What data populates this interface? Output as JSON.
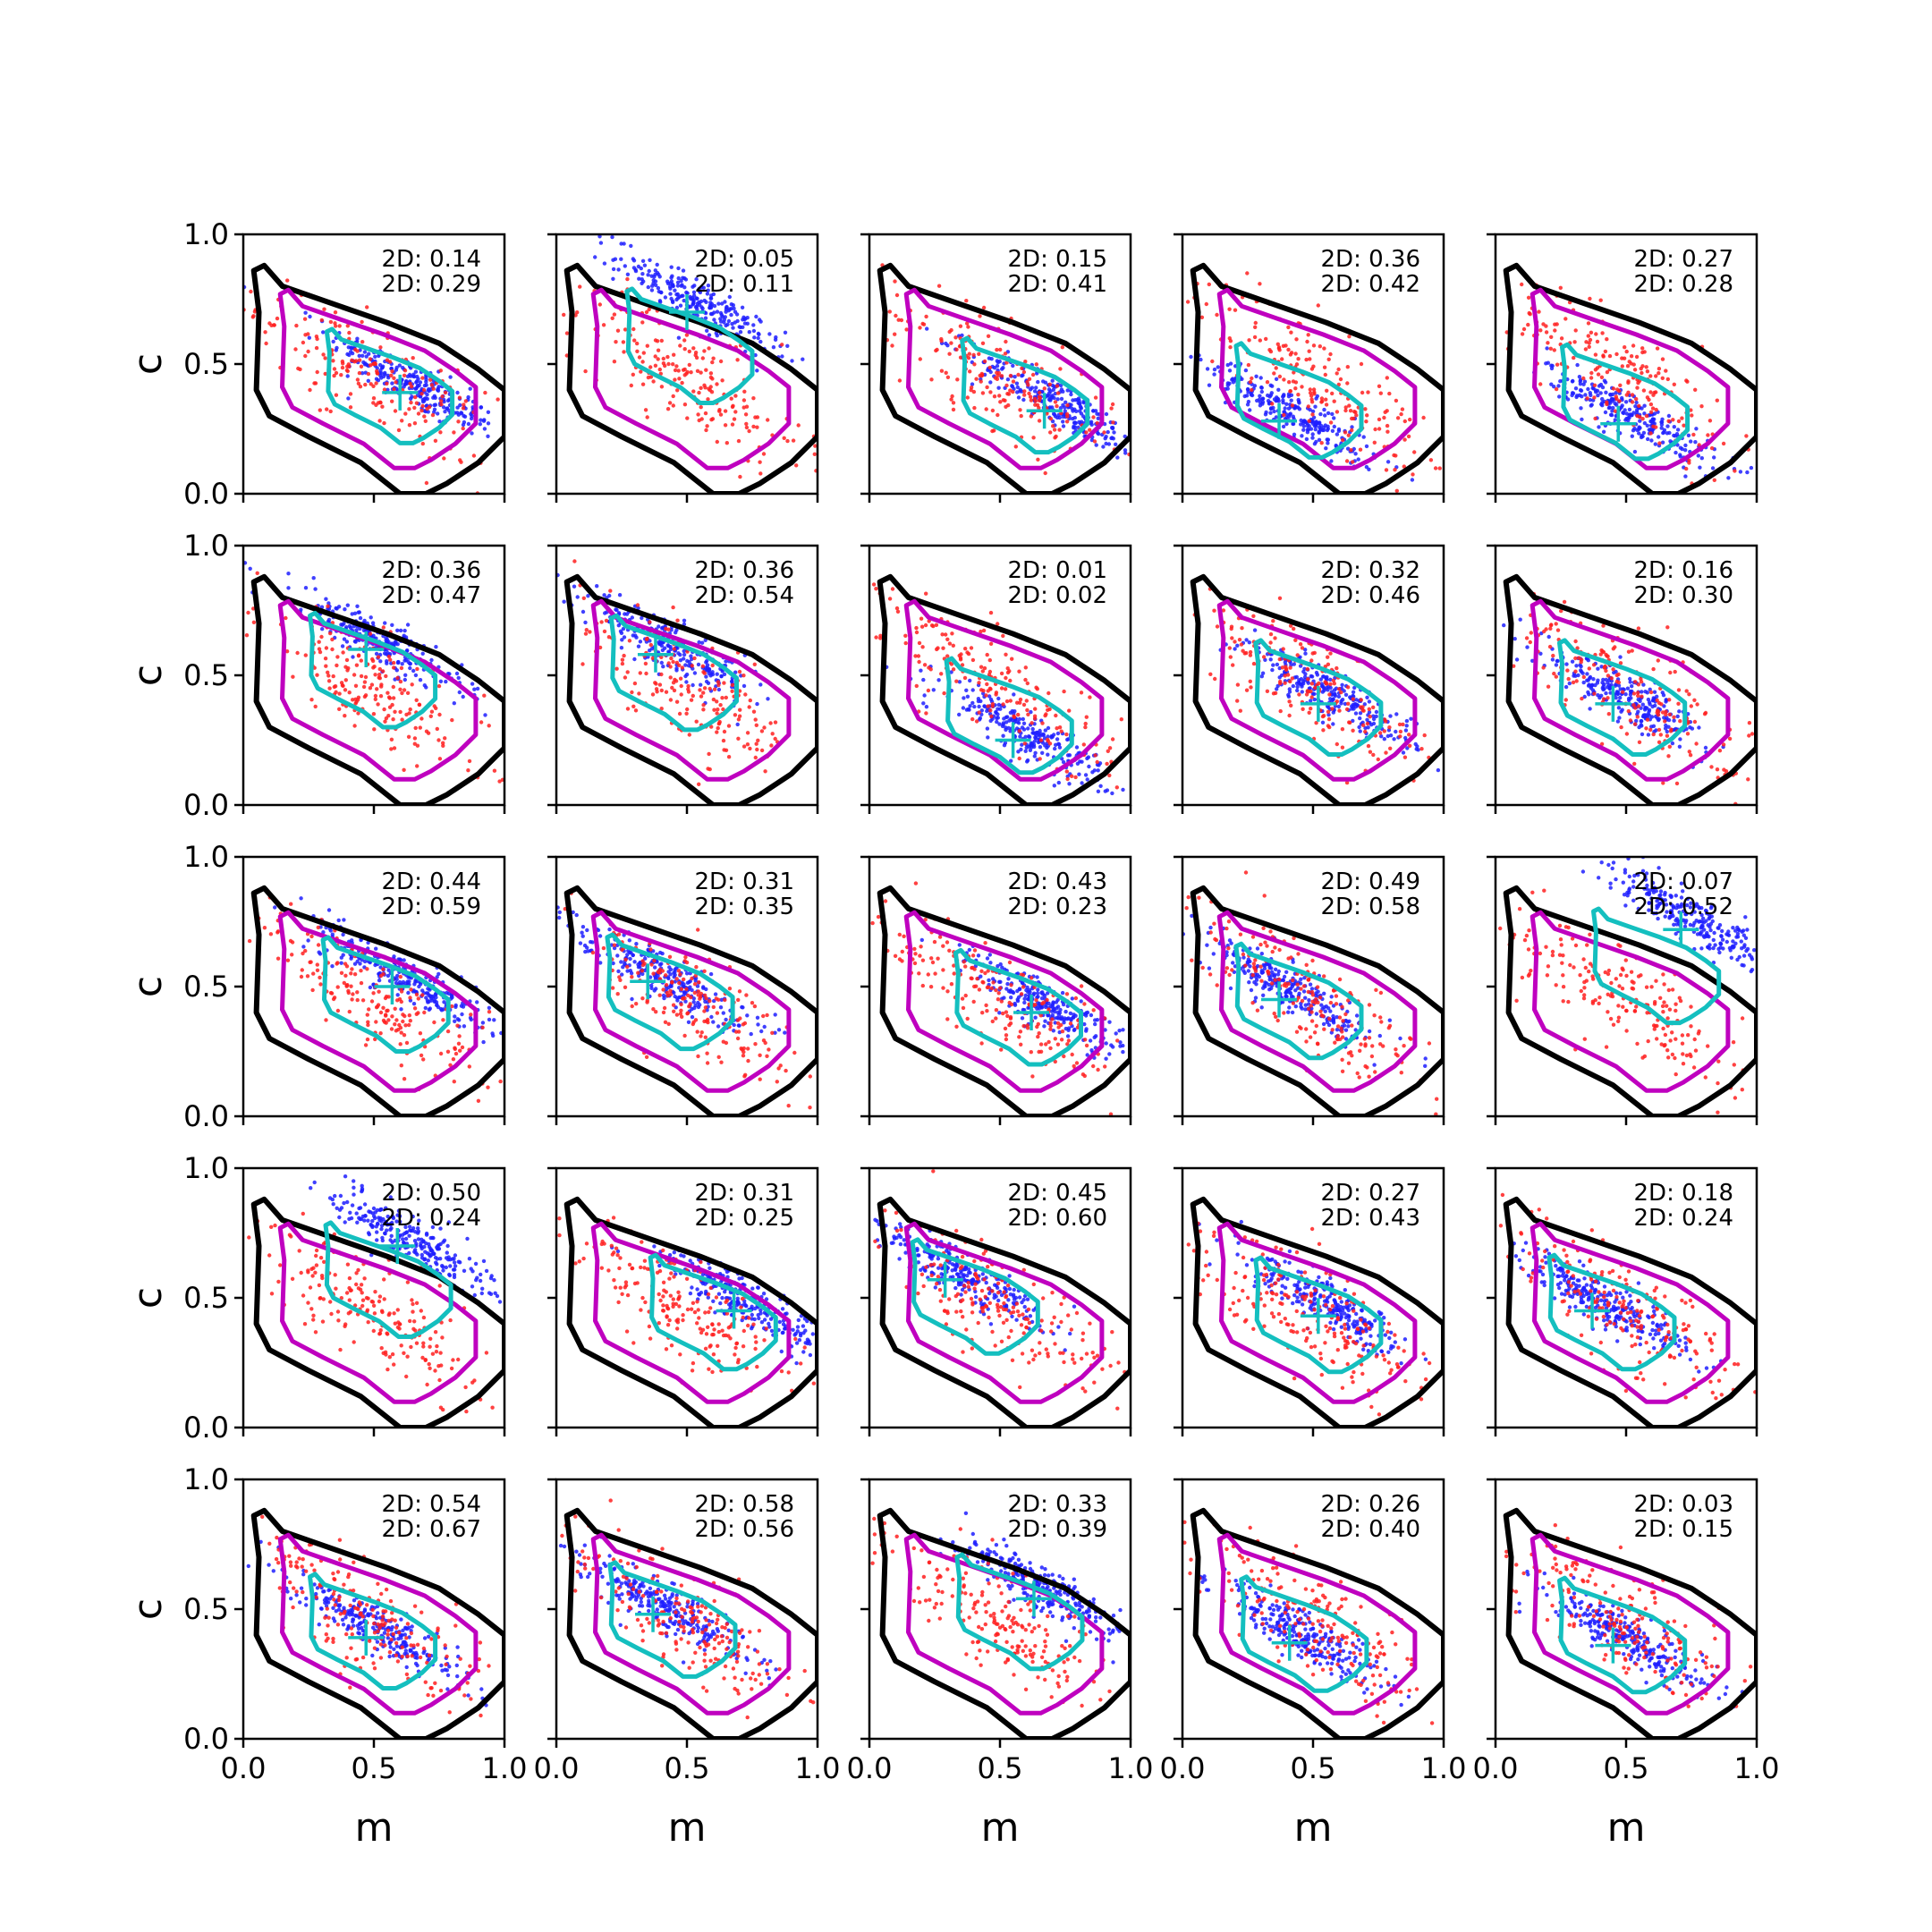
{
  "figure": {
    "xlabel": "m",
    "ylabel": "c",
    "xticks": [
      "0.0",
      "0.5",
      "1.0"
    ],
    "yticks": [
      "0.0",
      "0.5",
      "1.0"
    ],
    "colors": {
      "blue_points": "#1f1fff",
      "red_points": "#ff2020",
      "black_contour": "#000000",
      "magenta_contour": "#bf00bf",
      "cyan_contour": "#14bfbf",
      "cyan_marker": "#14bfbf"
    },
    "grid": false
  },
  "chart_data": {
    "type": "scatter",
    "rows": 5,
    "cols": 5,
    "xlim": [
      0,
      1
    ],
    "ylim": [
      0,
      1
    ],
    "panels": [
      {
        "annot": [
          "2D: 0.14",
          "2D: 0.29"
        ],
        "marker": [
          0.6,
          0.39
        ]
      },
      {
        "annot": [
          "2D: 0.05",
          "2D: 0.11"
        ],
        "marker": [
          0.5,
          0.7
        ]
      },
      {
        "annot": [
          "2D: 0.15",
          "2D: 0.41"
        ],
        "marker": [
          0.67,
          0.32
        ]
      },
      {
        "annot": [
          "2D: 0.36",
          "2D: 0.42"
        ],
        "marker": [
          0.37,
          0.28
        ]
      },
      {
        "annot": [
          "2D: 0.27",
          "2D: 0.28"
        ],
        "marker": [
          0.47,
          0.27
        ]
      },
      {
        "annot": [
          "2D: 0.36",
          "2D: 0.47"
        ],
        "marker": [
          0.47,
          0.6
        ]
      },
      {
        "annot": [
          "2D: 0.36",
          "2D: 0.54"
        ],
        "marker": [
          0.38,
          0.58
        ]
      },
      {
        "annot": [
          "2D: 0.01",
          "2D: 0.02"
        ],
        "marker": [
          0.55,
          0.25
        ]
      },
      {
        "annot": [
          "2D: 0.32",
          "2D: 0.46"
        ],
        "marker": [
          0.52,
          0.39
        ]
      },
      {
        "annot": [
          "2D: 0.16",
          "2D: 0.30"
        ],
        "marker": [
          0.45,
          0.39
        ]
      },
      {
        "annot": [
          "2D: 0.44",
          "2D: 0.59"
        ],
        "marker": [
          0.57,
          0.5
        ]
      },
      {
        "annot": [
          "2D: 0.31",
          "2D: 0.35"
        ],
        "marker": [
          0.35,
          0.52
        ]
      },
      {
        "annot": [
          "2D: 0.43",
          "2D: 0.23"
        ],
        "marker": [
          0.62,
          0.4
        ]
      },
      {
        "annot": [
          "2D: 0.49",
          "2D: 0.58"
        ],
        "marker": [
          0.37,
          0.45
        ]
      },
      {
        "annot": [
          "2D: 0.07",
          "2D: 0.52"
        ],
        "marker": [
          0.71,
          0.72
        ]
      },
      {
        "annot": [
          "2D: 0.50",
          "2D: 0.24"
        ],
        "marker": [
          0.59,
          0.7
        ]
      },
      {
        "annot": [
          "2D: 0.31",
          "2D: 0.25"
        ],
        "marker": [
          0.68,
          0.45
        ]
      },
      {
        "annot": [
          "2D: 0.45",
          "2D: 0.60"
        ],
        "marker": [
          0.29,
          0.57
        ]
      },
      {
        "annot": [
          "2D: 0.27",
          "2D: 0.43"
        ],
        "marker": [
          0.52,
          0.43
        ]
      },
      {
        "annot": [
          "2D: 0.18",
          "2D: 0.24"
        ],
        "marker": [
          0.37,
          0.45
        ]
      },
      {
        "annot": [
          "2D: 0.54",
          "2D: 0.67"
        ],
        "marker": [
          0.47,
          0.39
        ]
      },
      {
        "annot": [
          "2D: 0.58",
          "2D: 0.56"
        ],
        "marker": [
          0.37,
          0.48
        ]
      },
      {
        "annot": [
          "2D: 0.33",
          "2D: 0.39"
        ],
        "marker": [
          0.63,
          0.54
        ]
      },
      {
        "annot": [
          "2D: 0.26",
          "2D: 0.40"
        ],
        "marker": [
          0.41,
          0.37
        ]
      },
      {
        "annot": [
          "2D: 0.03",
          "2D: 0.15"
        ],
        "marker": [
          0.45,
          0.36
        ]
      }
    ]
  }
}
